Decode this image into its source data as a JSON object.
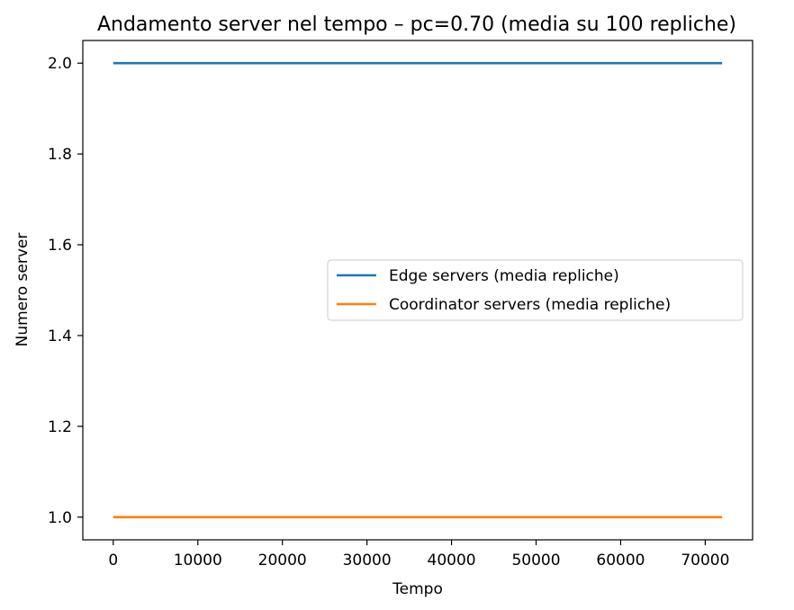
{
  "chart_data": {
    "type": "line",
    "title": "Andamento server nel tempo – pc=0.70 (media su 100 repliche)",
    "xlabel": "Tempo",
    "ylabel": "Numero server",
    "xlim": [
      -3600,
      75600
    ],
    "ylim": [
      0.95,
      2.05
    ],
    "x_ticks": [
      0,
      10000,
      20000,
      30000,
      40000,
      50000,
      60000,
      70000
    ],
    "x_tick_labels": [
      "0",
      "10000",
      "20000",
      "30000",
      "40000",
      "50000",
      "60000",
      "70000"
    ],
    "y_ticks": [
      1.0,
      1.2,
      1.4,
      1.6,
      1.8,
      2.0
    ],
    "y_tick_labels": [
      "1.0",
      "1.2",
      "1.4",
      "1.6",
      "1.8",
      "2.0"
    ],
    "grid": false,
    "legend_position": "center-right",
    "series": [
      {
        "name": "Edge servers (media repliche)",
        "color": "#1f77b4",
        "x": [
          0,
          72000
        ],
        "y": [
          2.0,
          2.0
        ]
      },
      {
        "name": "Coordinator servers (media repliche)",
        "color": "#ff7f0e",
        "x": [
          0,
          72000
        ],
        "y": [
          1.0,
          1.0
        ]
      }
    ]
  }
}
